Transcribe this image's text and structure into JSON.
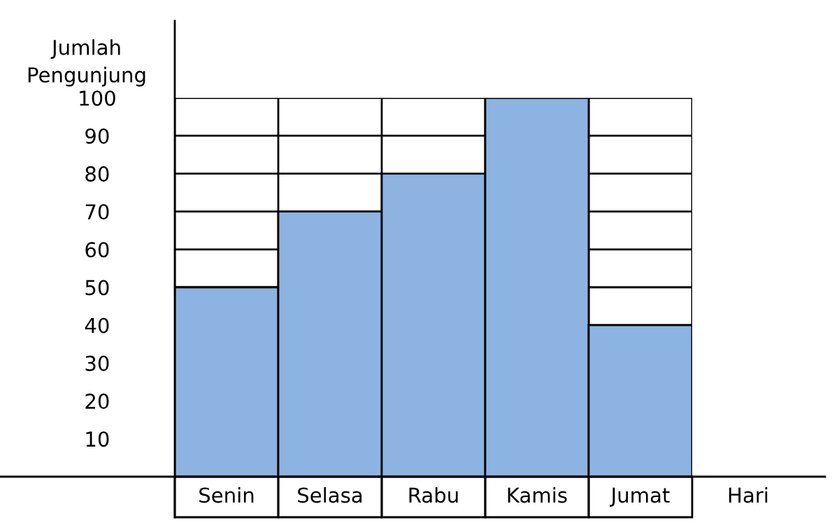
{
  "chart_data": {
    "type": "bar",
    "ylabel": "Jumlah\nPengunjung",
    "xlabel": "Hari",
    "categories": [
      "Senin",
      "Selasa",
      "Rabu",
      "Kamis",
      "Jumat"
    ],
    "values": [
      50,
      70,
      80,
      100,
      40
    ],
    "color": "#8db3e2",
    "ylim": [
      0,
      100
    ],
    "yticks": [
      10,
      20,
      30,
      40,
      50,
      60,
      70,
      80,
      90,
      100
    ],
    "grid": true
  }
}
